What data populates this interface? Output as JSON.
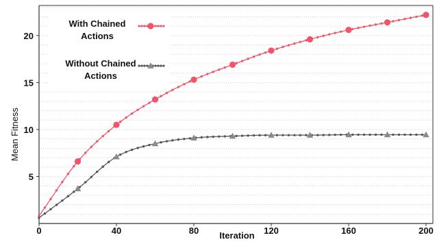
{
  "chart_data": {
    "type": "line",
    "xlabel": "Iteration",
    "ylabel": "Mean Fitness",
    "xlim": [
      0,
      200
    ],
    "ylim": [
      0,
      23.2
    ],
    "xticks": [
      0,
      40,
      80,
      120,
      160,
      200
    ],
    "yticks": [
      5,
      10,
      15,
      20
    ],
    "grid": "horizontal",
    "legend_position": "top-left",
    "series": [
      {
        "name_lines": [
          "With Chained",
          "Actions"
        ],
        "color": "#f0566a",
        "marker": "circle",
        "x": [
          0,
          20,
          40,
          60,
          80,
          100,
          120,
          140,
          160,
          180,
          200
        ],
        "values": [
          0.8,
          6.6,
          10.5,
          13.2,
          15.3,
          16.9,
          18.4,
          19.6,
          20.6,
          21.4,
          22.2
        ]
      },
      {
        "name_lines": [
          "Without Chained",
          "Actions"
        ],
        "color": "#555555",
        "marker": "triangle",
        "x": [
          0,
          20,
          40,
          60,
          80,
          100,
          120,
          140,
          160,
          180,
          200
        ],
        "values": [
          0.6,
          3.7,
          7.1,
          8.5,
          9.1,
          9.3,
          9.4,
          9.4,
          9.45,
          9.45,
          9.45
        ]
      }
    ]
  }
}
